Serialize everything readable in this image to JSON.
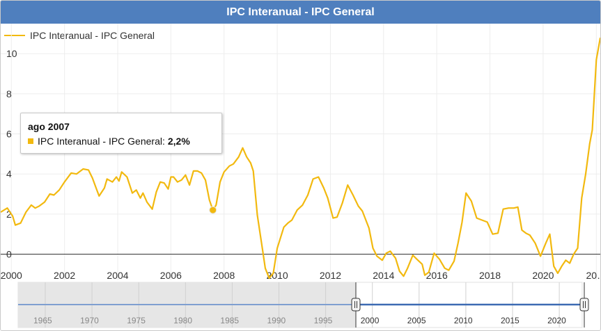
{
  "header": {
    "title": "IPC Interanual - IPC General"
  },
  "legend": {
    "label": "IPC Interanual - IPC General",
    "color": "#f2b90f"
  },
  "tooltip": {
    "date": "ago 2007",
    "series": "IPC Interanual - IPC General:",
    "value": "2,2%"
  },
  "navigator": {
    "tick_labels": [
      "1965",
      "1970",
      "1975",
      "1980",
      "1985",
      "1990",
      "1995",
      "2000",
      "2005",
      "2010",
      "2015",
      "2020"
    ]
  },
  "colors": {
    "title_bar": "#4f7fbe",
    "series": "#f2b90f",
    "navigator_line": "#4f7fbe",
    "navigator_mask": "#e6e6e6"
  },
  "chart_data": {
    "type": "line",
    "title": "IPC Interanual - IPC General",
    "xlabel": "",
    "ylabel": "",
    "x_tick_labels": [
      "2000",
      "2002",
      "2004",
      "2006",
      "2008",
      "2010",
      "2012",
      "2014",
      "2016",
      "2018",
      "2020",
      "20…"
    ],
    "y_tick_labels": [
      "0",
      "2",
      "4",
      "6",
      "8",
      "10"
    ],
    "ylim": [
      -1.3,
      11.5
    ],
    "xlim": [
      1999.6,
      2022.15
    ],
    "grid": true,
    "legend_position": "top-left",
    "highlighted_point": {
      "x": 2007.58,
      "y": 2.2
    },
    "series": [
      {
        "name": "IPC Interanual - IPC General",
        "points": [
          [
            1999.6,
            2.1
          ],
          [
            1999.85,
            2.3
          ],
          [
            2000.05,
            1.9
          ],
          [
            2000.15,
            1.45
          ],
          [
            2000.35,
            1.55
          ],
          [
            2000.55,
            2.1
          ],
          [
            2000.75,
            2.45
          ],
          [
            2000.9,
            2.3
          ],
          [
            2001.05,
            2.4
          ],
          [
            2001.25,
            2.6
          ],
          [
            2001.45,
            3.0
          ],
          [
            2001.6,
            2.95
          ],
          [
            2001.8,
            3.2
          ],
          [
            2002.0,
            3.6
          ],
          [
            2002.25,
            4.05
          ],
          [
            2002.45,
            4.0
          ],
          [
            2002.7,
            4.25
          ],
          [
            2002.9,
            4.2
          ],
          [
            2003.05,
            3.8
          ],
          [
            2003.2,
            3.25
          ],
          [
            2003.3,
            2.9
          ],
          [
            2003.5,
            3.3
          ],
          [
            2003.6,
            3.75
          ],
          [
            2003.8,
            3.6
          ],
          [
            2003.95,
            3.85
          ],
          [
            2004.05,
            3.65
          ],
          [
            2004.15,
            4.1
          ],
          [
            2004.35,
            3.85
          ],
          [
            2004.55,
            3.05
          ],
          [
            2004.7,
            3.2
          ],
          [
            2004.85,
            2.8
          ],
          [
            2004.95,
            3.05
          ],
          [
            2005.1,
            2.6
          ],
          [
            2005.3,
            2.25
          ],
          [
            2005.45,
            3.1
          ],
          [
            2005.6,
            3.6
          ],
          [
            2005.75,
            3.55
          ],
          [
            2005.9,
            3.25
          ],
          [
            2006.0,
            3.85
          ],
          [
            2006.1,
            3.85
          ],
          [
            2006.25,
            3.6
          ],
          [
            2006.4,
            3.7
          ],
          [
            2006.55,
            3.95
          ],
          [
            2006.7,
            3.45
          ],
          [
            2006.85,
            4.15
          ],
          [
            2007.0,
            4.15
          ],
          [
            2007.15,
            4.05
          ],
          [
            2007.3,
            3.7
          ],
          [
            2007.45,
            2.7
          ],
          [
            2007.58,
            2.2
          ],
          [
            2007.7,
            2.45
          ],
          [
            2007.85,
            3.6
          ],
          [
            2008.0,
            4.1
          ],
          [
            2008.2,
            4.4
          ],
          [
            2008.35,
            4.5
          ],
          [
            2008.55,
            4.85
          ],
          [
            2008.7,
            5.3
          ],
          [
            2008.85,
            4.85
          ],
          [
            2009.0,
            4.55
          ],
          [
            2009.1,
            4.15
          ],
          [
            2009.25,
            1.95
          ],
          [
            2009.45,
            0.2
          ],
          [
            2009.55,
            -0.7
          ],
          [
            2009.7,
            -1.2
          ],
          [
            2009.85,
            -0.95
          ],
          [
            2010.0,
            0.3
          ],
          [
            2010.25,
            1.35
          ],
          [
            2010.4,
            1.55
          ],
          [
            2010.55,
            1.7
          ],
          [
            2010.75,
            2.2
          ],
          [
            2010.95,
            2.45
          ],
          [
            2011.15,
            2.95
          ],
          [
            2011.35,
            3.75
          ],
          [
            2011.55,
            3.85
          ],
          [
            2011.75,
            3.3
          ],
          [
            2011.9,
            2.8
          ],
          [
            2012.1,
            1.8
          ],
          [
            2012.25,
            1.85
          ],
          [
            2012.45,
            2.55
          ],
          [
            2012.65,
            3.45
          ],
          [
            2012.85,
            2.95
          ],
          [
            2013.05,
            2.4
          ],
          [
            2013.2,
            2.15
          ],
          [
            2013.45,
            1.3
          ],
          [
            2013.6,
            0.3
          ],
          [
            2013.75,
            -0.1
          ],
          [
            2013.95,
            -0.3
          ],
          [
            2014.1,
            0.05
          ],
          [
            2014.25,
            0.15
          ],
          [
            2014.45,
            -0.2
          ],
          [
            2014.6,
            -0.85
          ],
          [
            2014.75,
            -1.1
          ],
          [
            2014.9,
            -0.7
          ],
          [
            2015.1,
            -0.05
          ],
          [
            2015.25,
            -0.25
          ],
          [
            2015.45,
            -0.5
          ],
          [
            2015.55,
            -1.05
          ],
          [
            2015.7,
            -0.9
          ],
          [
            2015.9,
            0.05
          ],
          [
            2016.1,
            -0.25
          ],
          [
            2016.3,
            -0.7
          ],
          [
            2016.45,
            -0.8
          ],
          [
            2016.65,
            -0.35
          ],
          [
            2016.8,
            0.55
          ],
          [
            2016.95,
            1.6
          ],
          [
            2017.1,
            3.05
          ],
          [
            2017.3,
            2.65
          ],
          [
            2017.5,
            1.8
          ],
          [
            2017.7,
            1.7
          ],
          [
            2017.9,
            1.6
          ],
          [
            2018.1,
            1.0
          ],
          [
            2018.3,
            1.05
          ],
          [
            2018.5,
            2.25
          ],
          [
            2018.7,
            2.3
          ],
          [
            2018.9,
            2.3
          ],
          [
            2019.05,
            2.35
          ],
          [
            2019.2,
            1.2
          ],
          [
            2019.35,
            1.05
          ],
          [
            2019.5,
            0.95
          ],
          [
            2019.7,
            0.55
          ],
          [
            2019.9,
            -0.1
          ],
          [
            2020.1,
            0.55
          ],
          [
            2020.25,
            1.0
          ],
          [
            2020.4,
            -0.6
          ],
          [
            2020.55,
            -0.95
          ],
          [
            2020.7,
            -0.6
          ],
          [
            2020.85,
            -0.3
          ],
          [
            2021.0,
            -0.45
          ],
          [
            2021.15,
            0.0
          ],
          [
            2021.3,
            0.3
          ],
          [
            2021.45,
            2.8
          ],
          [
            2021.6,
            4.0
          ],
          [
            2021.75,
            5.5
          ],
          [
            2021.85,
            6.2
          ],
          [
            2022.0,
            9.7
          ],
          [
            2022.15,
            10.8
          ]
        ]
      }
    ]
  }
}
